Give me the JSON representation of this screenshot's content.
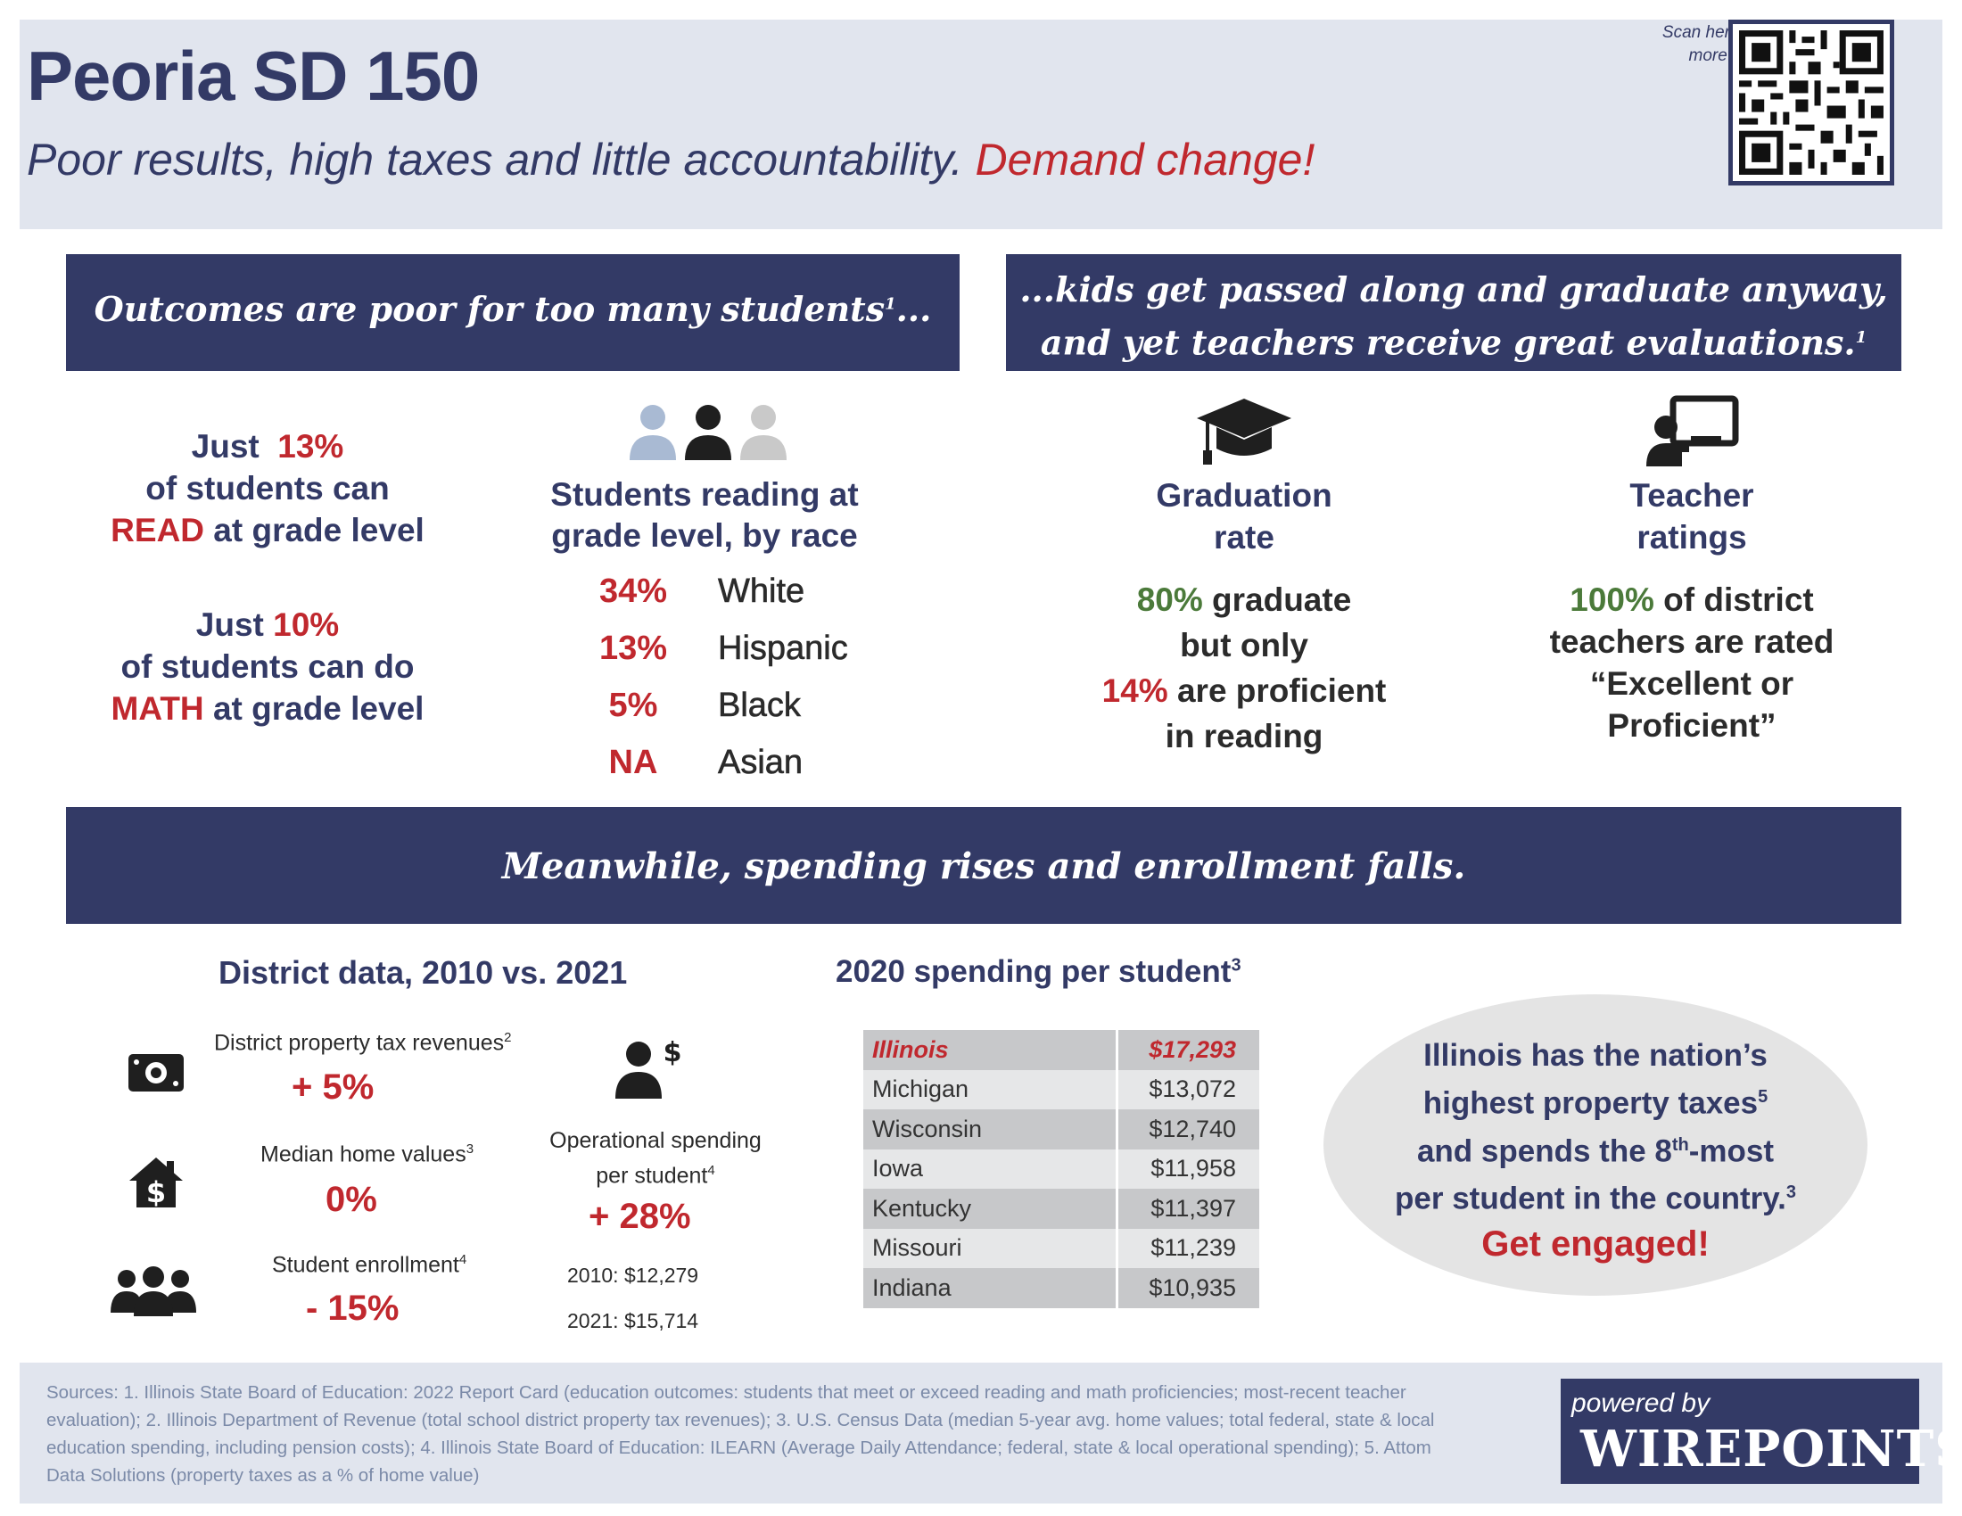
{
  "header": {
    "title": "Peoria SD 150",
    "subtitle_main": "Poor results, high taxes and little accountability.",
    "subtitle_cta": "Demand change!",
    "scan_note": "Scan here for more info."
  },
  "banners": {
    "outcomes": "Outcomes are poor for too many students",
    "outcomes_ref": "1",
    "outcomes_end": "...",
    "passed_line1": "...kids get passed along and graduate anyway,",
    "passed_line2": "and yet teachers receive great evaluations.",
    "passed_ref": "1",
    "spending": "Meanwhile, spending rises and enrollment falls."
  },
  "outcomes": {
    "read": {
      "pre": "Just",
      "pct": "13%",
      "line2": "of students can",
      "keyword": "READ",
      "tail": "at grade level"
    },
    "math": {
      "pre": "Just",
      "pct": "10%",
      "line2": "of students can do",
      "keyword": "MATH",
      "tail": "at grade level"
    }
  },
  "race": {
    "title_line1": "Students reading at",
    "title_line2": "grade level, by race",
    "rows": [
      {
        "pct": "34%",
        "name": "White"
      },
      {
        "pct": "13%",
        "name": "Hispanic"
      },
      {
        "pct": "5%",
        "name": "Black"
      },
      {
        "pct": "NA",
        "name": "Asian"
      }
    ]
  },
  "graduation": {
    "title_line1": "Graduation",
    "title_line2": "rate",
    "pct1": "80%",
    "text1": "graduate",
    "text2": "but only",
    "pct2": "14%",
    "text3": "are proficient",
    "text4": "in reading"
  },
  "teachers": {
    "title_line1": "Teacher",
    "title_line2": "ratings",
    "pct": "100%",
    "text1": "of district",
    "text2": "teachers are rated",
    "text3": "“Excellent or",
    "text4": "Proficient”"
  },
  "district": {
    "title": "District data, 2010 vs. 2021",
    "tax_label": "District property tax revenues",
    "tax_ref": "2",
    "tax_value": "+ 5%",
    "home_label": "Median home values",
    "home_ref": "3",
    "home_value": "0%",
    "enroll_label": "Student enrollment",
    "enroll_ref": "4",
    "enroll_value": "- 15%",
    "op_label1": "Operational spending",
    "op_label2": "per student",
    "op_ref": "4",
    "op_value": "+ 28%",
    "op_2010": "2010: $12,279",
    "op_2021": "2021: $15,714"
  },
  "spending": {
    "title": "2020 spending per student",
    "title_ref": "3",
    "rows": [
      {
        "state": "Illinois",
        "value": "$17,293"
      },
      {
        "state": "Michigan",
        "value": "$13,072"
      },
      {
        "state": "Wisconsin",
        "value": "$12,740"
      },
      {
        "state": "Iowa",
        "value": "$11,958"
      },
      {
        "state": "Kentucky",
        "value": "$11,397"
      },
      {
        "state": "Missouri",
        "value": "$11,239"
      },
      {
        "state": "Indiana",
        "value": "$10,935"
      }
    ]
  },
  "callout": {
    "line1": "Illinois has the nation’s",
    "line2": "highest property taxes",
    "ref2": "5",
    "line3a": "and spends the 8",
    "line3sup": "th",
    "line3b": "-most",
    "line4": "per student in the country.",
    "ref4": "3",
    "cta": "Get engaged!"
  },
  "footer": {
    "sources": "Sources: 1. Illinois State Board of Education: 2022 Report Card (education outcomes: students that meet or exceed reading and math proficiencies; most-recent teacher evaluation); 2. Illinois Department of Revenue (total school district property tax revenues); 3. U.S. Census Data (median 5-year avg. home values; total federal, state & local education spending, including pension costs); 4. Illinois State Board of Education: ILEARN (Average Daily Attendance; federal, state & local operational spending); 5. Attom Data Solutions (property taxes as a % of home value)",
    "powered_by": "powered by",
    "brand": "WIREPOINTS"
  },
  "colors": {
    "navy": "#333a66",
    "red": "#c0282e",
    "green": "#4b7a3a",
    "header_bg": "#e1e5ee"
  },
  "icons": [
    "qr-code-icon",
    "people-icon",
    "graduation-cap-icon",
    "teacher-board-icon",
    "money-bill-icon",
    "house-dollar-icon",
    "group-icon",
    "person-dollar-icon"
  ]
}
